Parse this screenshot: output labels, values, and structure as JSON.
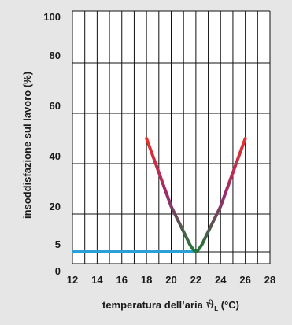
{
  "chart_data": {
    "type": "line",
    "xlabel_prefix": "temperatura dell’aria ",
    "xlabel_symbol": "ϑ",
    "xlabel_subscript": "L",
    "xlabel_suffix": " (°C)",
    "ylabel": "insoddisfazione sul lavoro (%)",
    "xlim": [
      12,
      28
    ],
    "ylim": [
      0,
      100
    ],
    "x_ticks": [
      12,
      14,
      16,
      18,
      20,
      22,
      24,
      26,
      28
    ],
    "y_ticks": [
      0,
      5,
      20,
      40,
      60,
      80,
      100
    ],
    "grid": true,
    "series": [
      {
        "color": "#2a9fd8",
        "x": [
          12,
          21.8
        ],
        "y": [
          5,
          5
        ]
      },
      {
        "colors": [
          "#e8322a",
          "#9b2a6e",
          "#1f7a3a"
        ],
        "x": [
          18,
          20,
          21.5,
          22,
          22.5,
          24,
          26
        ],
        "y": [
          50,
          23,
          8,
          5,
          8,
          23,
          50
        ]
      }
    ]
  }
}
